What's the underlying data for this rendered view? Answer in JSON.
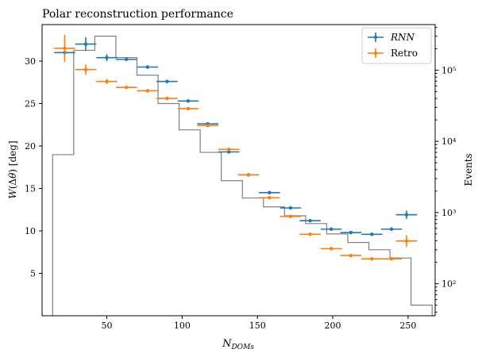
{
  "chart_data": {
    "type": "scatter",
    "title": "Polar reconstruction performance",
    "xlabel": "N_{DOMs}",
    "ylabel": "W(Δθ) [deg]",
    "y2label": "Events",
    "xlim": [
      7,
      268
    ],
    "ylim": [
      0,
      34.3
    ],
    "y2lim_log": [
      1.55,
      5.64
    ],
    "x_ticks": [
      50,
      100,
      150,
      200,
      250
    ],
    "y_ticks": [
      5,
      10,
      15,
      20,
      25,
      30
    ],
    "y2_ticks": [
      {
        "exp": 2,
        "label": "10²"
      },
      {
        "exp": 3,
        "label": "10³"
      },
      {
        "exp": 4,
        "label": "10⁴"
      },
      {
        "exp": 5,
        "label": "10⁵"
      }
    ],
    "grid": false,
    "legend_position": "top-right",
    "series": [
      {
        "name": "RNN",
        "color": "#1f77b4",
        "points": [
          {
            "x": 22,
            "y": 31.0,
            "xerr": 7,
            "yerr": 0.3
          },
          {
            "x": 36,
            "y": 32.0,
            "xerr": 7,
            "yerr": 0.8
          },
          {
            "x": 50,
            "y": 30.4,
            "xerr": 7,
            "yerr": 0.4
          },
          {
            "x": 63,
            "y": 30.2,
            "xerr": 7,
            "yerr": 0.2
          },
          {
            "x": 77,
            "y": 29.3,
            "xerr": 7,
            "yerr": 0.2
          },
          {
            "x": 90,
            "y": 27.6,
            "xerr": 7,
            "yerr": 0.2
          },
          {
            "x": 104,
            "y": 25.3,
            "xerr": 7,
            "yerr": 0.2
          },
          {
            "x": 117,
            "y": 22.6,
            "xerr": 7,
            "yerr": 0.2
          },
          {
            "x": 131,
            "y": 19.3,
            "xerr": 7,
            "yerr": 0.2
          },
          {
            "x": 144,
            "y": 16.6,
            "xerr": 7,
            "yerr": 0.2
          },
          {
            "x": 158,
            "y": 14.5,
            "xerr": 7,
            "yerr": 0.2
          },
          {
            "x": 172,
            "y": 12.7,
            "xerr": 7,
            "yerr": 0.2
          },
          {
            "x": 185,
            "y": 11.2,
            "xerr": 7,
            "yerr": 0.2
          },
          {
            "x": 199,
            "y": 10.2,
            "xerr": 7,
            "yerr": 0.2
          },
          {
            "x": 212,
            "y": 9.8,
            "xerr": 7,
            "yerr": 0.2
          },
          {
            "x": 226,
            "y": 9.6,
            "xerr": 7,
            "yerr": 0.2
          },
          {
            "x": 239,
            "y": 10.2,
            "xerr": 7,
            "yerr": 0.2
          },
          {
            "x": 249,
            "y": 11.9,
            "xerr": 7,
            "yerr": 0.5
          }
        ]
      },
      {
        "name": "Retro",
        "color": "#ff7f0e",
        "points": [
          {
            "x": 22,
            "y": 31.5,
            "xerr": 7,
            "yerr": 1.6
          },
          {
            "x": 36,
            "y": 29.0,
            "xerr": 7,
            "yerr": 0.6
          },
          {
            "x": 50,
            "y": 27.6,
            "xerr": 7,
            "yerr": 0.3
          },
          {
            "x": 63,
            "y": 26.9,
            "xerr": 7,
            "yerr": 0.2
          },
          {
            "x": 77,
            "y": 26.5,
            "xerr": 7,
            "yerr": 0.2
          },
          {
            "x": 90,
            "y": 25.6,
            "xerr": 7,
            "yerr": 0.2
          },
          {
            "x": 104,
            "y": 24.4,
            "xerr": 7,
            "yerr": 0.2
          },
          {
            "x": 117,
            "y": 22.4,
            "xerr": 7,
            "yerr": 0.2
          },
          {
            "x": 131,
            "y": 19.6,
            "xerr": 7,
            "yerr": 0.2
          },
          {
            "x": 144,
            "y": 16.6,
            "xerr": 7,
            "yerr": 0.2
          },
          {
            "x": 158,
            "y": 13.9,
            "xerr": 7,
            "yerr": 0.2
          },
          {
            "x": 172,
            "y": 11.7,
            "xerr": 7,
            "yerr": 0.2
          },
          {
            "x": 185,
            "y": 9.6,
            "xerr": 7,
            "yerr": 0.2
          },
          {
            "x": 199,
            "y": 7.9,
            "xerr": 7,
            "yerr": 0.2
          },
          {
            "x": 212,
            "y": 7.1,
            "xerr": 7,
            "yerr": 0.2
          },
          {
            "x": 226,
            "y": 6.7,
            "xerr": 7,
            "yerr": 0.2
          },
          {
            "x": 239,
            "y": 6.7,
            "xerr": 7,
            "yerr": 0.2
          },
          {
            "x": 249,
            "y": 8.8,
            "xerr": 7,
            "yerr": 0.7
          }
        ]
      }
    ],
    "histogram": {
      "name": "Events",
      "color": "#808080",
      "bin_edges": [
        14,
        28,
        42,
        56,
        70,
        84,
        98,
        112,
        126,
        140,
        154,
        168,
        182,
        196,
        210,
        224,
        238,
        252,
        266
      ],
      "counts": [
        6500,
        190000,
        300000,
        150000,
        85000,
        34000,
        14500,
        7000,
        2800,
        1600,
        1200,
        900,
        700,
        500,
        380,
        300,
        230,
        50
      ]
    }
  }
}
